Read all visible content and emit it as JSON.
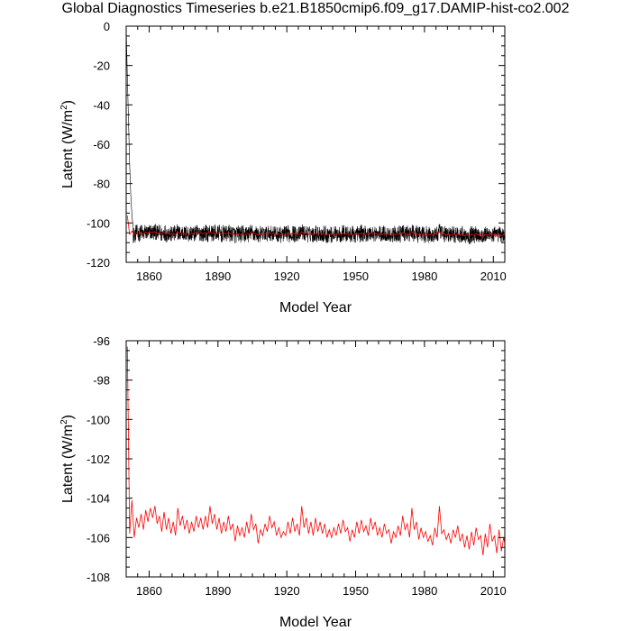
{
  "title": "Global Diagnostics Timeseries b.e21.B1850cmip6.f09_g17.DAMIP-hist-co2.002",
  "colors": {
    "monthly": "#000000",
    "annual": "#ff0000",
    "axis": "#000000"
  },
  "chart_data": [
    {
      "type": "line",
      "xlabel": "Model Year",
      "ylabel": "Latent (W/m",
      "ylabel_sup": "2",
      "ylabel_close": ")",
      "xlim": [
        1850,
        2015
      ],
      "ylim": [
        -120,
        0
      ],
      "xticks": [
        1860,
        1890,
        1920,
        1950,
        1980,
        2010
      ],
      "xtick_labels": [
        "1860",
        "1890",
        "1920",
        "1950",
        "1980",
        "2010"
      ],
      "yticks": [
        0,
        -20,
        -40,
        -60,
        -80,
        -100,
        -120
      ],
      "ytick_labels": [
        "0",
        "-20",
        "-40",
        "-60",
        "-80",
        "-100",
        "-120"
      ],
      "series": [
        {
          "color": "#000000",
          "x_start": 1850,
          "x_step": 0.0833333,
          "count": 1980,
          "spinup": [
            [
              1850.0,
              -1
            ],
            [
              1850.5,
              -25
            ],
            [
              1851.0,
              -48
            ],
            [
              1851.5,
              -70
            ],
            [
              1852.0,
              -86
            ],
            [
              1852.5,
              -96
            ],
            [
              1853.0,
              -102
            ]
          ],
          "noise_mean": -105.3,
          "noise_amp": 4.2
        },
        {
          "color": "#ff0000",
          "use_annual": true
        }
      ]
    },
    {
      "type": "line",
      "xlabel": "Model Year",
      "ylabel": "Latent (W/m",
      "ylabel_sup": "2",
      "ylabel_close": ")",
      "xlim": [
        1850,
        2015
      ],
      "ylim": [
        -108,
        -96
      ],
      "xticks": [
        1860,
        1890,
        1920,
        1950,
        1980,
        2010
      ],
      "xtick_labels": [
        "1860",
        "1890",
        "1920",
        "1950",
        "1980",
        "2010"
      ],
      "yticks": [
        -96,
        -98,
        -100,
        -102,
        -104,
        -106,
        -108
      ],
      "ytick_labels": [
        "-96",
        "-98",
        "-100",
        "-102",
        "-104",
        "-106",
        "-108"
      ],
      "series": [
        {
          "color": "#ff0000",
          "x_start": 1850.5,
          "x_step": 1,
          "values": [
            -96.3,
            -105.8,
            -104.1,
            -106.0,
            -105.0,
            -105.5,
            -104.8,
            -105.6,
            -104.6,
            -105.2,
            -104.5,
            -105.0,
            -104.4,
            -105.3,
            -104.9,
            -105.7,
            -104.7,
            -105.6,
            -105.0,
            -105.8,
            -105.2,
            -105.9,
            -104.5,
            -105.4,
            -104.9,
            -105.6,
            -105.1,
            -105.8,
            -105.2,
            -105.7,
            -104.9,
            -105.5,
            -105.0,
            -105.6,
            -104.9,
            -105.5,
            -104.4,
            -105.3,
            -104.8,
            -105.6,
            -105.0,
            -105.8,
            -105.2,
            -105.7,
            -104.9,
            -105.6,
            -105.3,
            -106.2,
            -105.4,
            -105.9,
            -105.5,
            -106.0,
            -105.2,
            -105.8,
            -104.8,
            -105.6,
            -105.3,
            -106.3,
            -105.6,
            -105.9,
            -105.3,
            -105.7,
            -104.9,
            -105.5,
            -105.2,
            -105.9,
            -105.5,
            -106.0,
            -105.7,
            -105.9,
            -105.2,
            -105.8,
            -105.0,
            -105.7,
            -105.3,
            -105.9,
            -104.4,
            -105.5,
            -105.0,
            -105.8,
            -105.2,
            -105.9,
            -105.0,
            -105.7,
            -105.2,
            -105.8,
            -105.3,
            -106.0,
            -105.6,
            -106.0,
            -105.5,
            -105.9,
            -105.3,
            -105.8,
            -105.1,
            -105.7,
            -105.5,
            -106.2,
            -105.6,
            -106.0,
            -105.2,
            -105.8,
            -105.1,
            -105.7,
            -105.4,
            -105.9,
            -105.0,
            -105.6,
            -105.2,
            -105.9,
            -105.5,
            -106.0,
            -105.3,
            -105.8,
            -105.6,
            -106.3,
            -105.7,
            -106.0,
            -105.4,
            -105.9,
            -104.9,
            -105.6,
            -105.3,
            -106.0,
            -104.5,
            -105.6,
            -105.2,
            -106.1,
            -105.5,
            -106.0,
            -105.7,
            -106.2,
            -105.9,
            -106.4,
            -105.5,
            -106.0,
            -104.4,
            -105.8,
            -105.6,
            -106.1,
            -105.8,
            -106.3,
            -105.6,
            -106.0,
            -105.4,
            -106.2,
            -105.8,
            -106.5,
            -105.9,
            -106.6,
            -105.7,
            -106.4,
            -105.5,
            -106.1,
            -105.9,
            -106.9,
            -105.8,
            -106.5,
            -105.3,
            -106.2,
            -105.9,
            -106.8,
            -105.6,
            -106.7,
            -106.0,
            -106.6
          ]
        }
      ]
    }
  ]
}
